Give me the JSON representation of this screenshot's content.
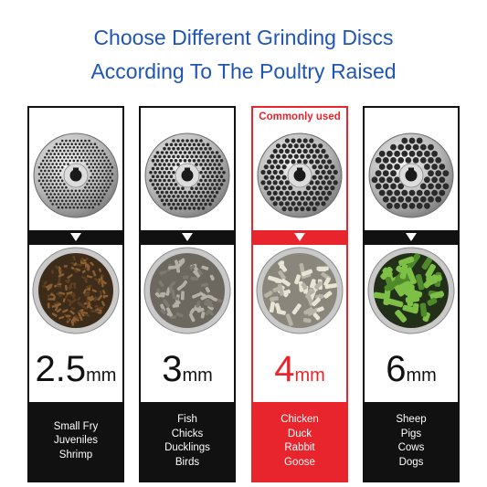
{
  "title": {
    "line1": "Choose Different Grinding Discs",
    "line2": "According To The Poultry Raised"
  },
  "colors": {
    "title_blue": "#1f55b4",
    "highlight_red": "#e8242d",
    "dark": "#111111"
  },
  "columns": [
    {
      "badge": "",
      "value": "2.5",
      "unit": "mm",
      "highlight": false,
      "disc_icon": "grinding-disc-fine-holes",
      "pellet_icon": "brown-pellets-bowl",
      "animals": [
        "Small Fry",
        "Juveniles",
        "Shrimp"
      ]
    },
    {
      "badge": "",
      "value": "3",
      "unit": "mm",
      "highlight": false,
      "disc_icon": "grinding-disc-small-holes",
      "pellet_icon": "grey-pellets-bowl",
      "animals": [
        "Fish",
        "Chicks",
        "Ducklings",
        "Birds"
      ]
    },
    {
      "badge": "Commonly used",
      "value": "4",
      "unit": "mm",
      "highlight": true,
      "disc_icon": "grinding-disc-medium-holes",
      "pellet_icon": "white-pellets-bowl",
      "animals": [
        "Chicken",
        "Duck",
        "Rabbit",
        "Goose"
      ]
    },
    {
      "badge": "",
      "value": "6",
      "unit": "mm",
      "highlight": false,
      "disc_icon": "grinding-disc-large-holes",
      "pellet_icon": "green-pellets-bowl",
      "animals": [
        "Sheep",
        "Pigs",
        "Cows",
        "Dogs"
      ]
    }
  ]
}
